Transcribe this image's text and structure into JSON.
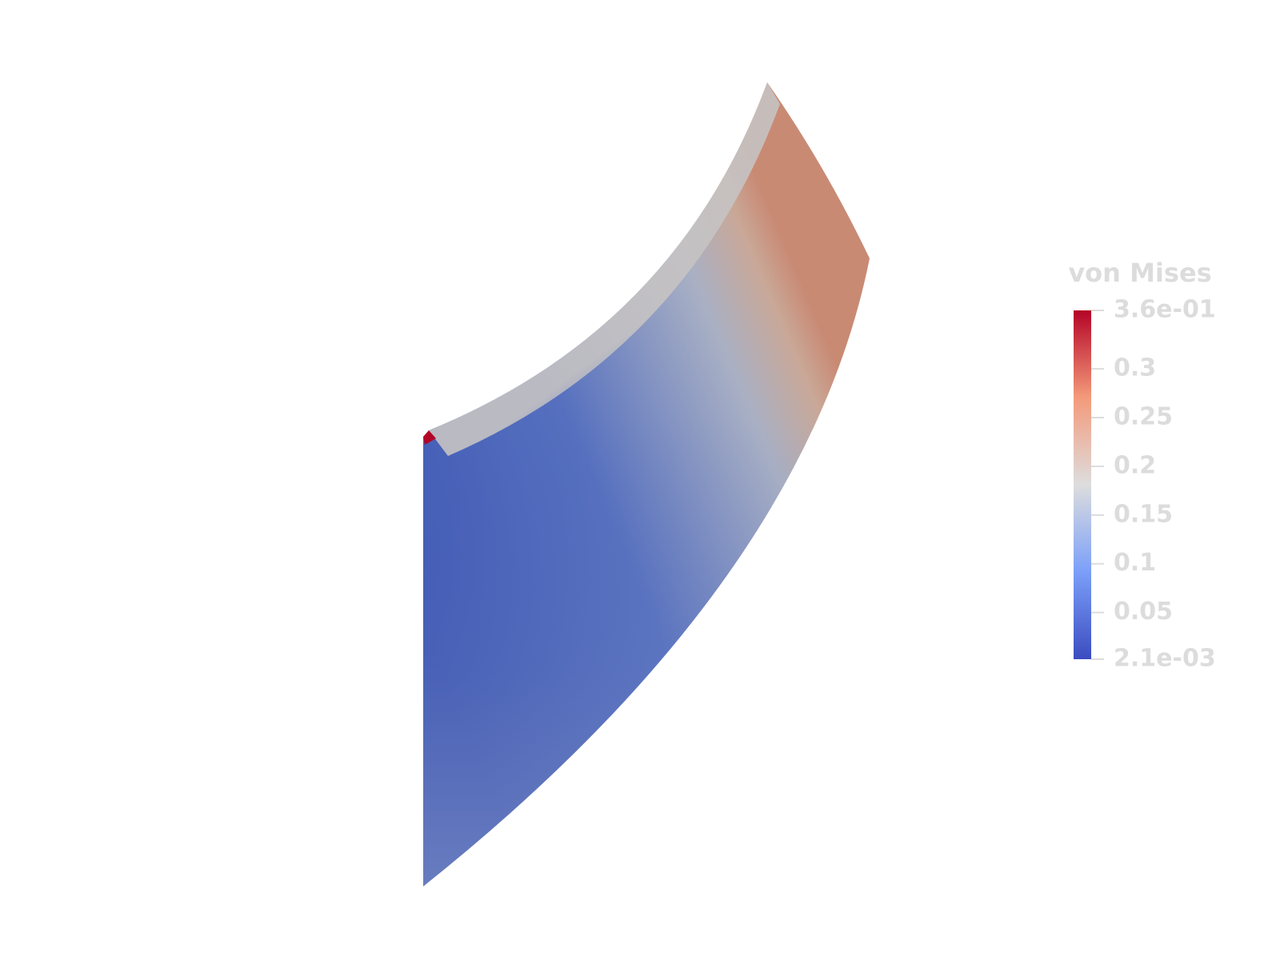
{
  "colorbar": {
    "title": "von Mises",
    "range": [
      0.0021,
      0.36
    ],
    "ticks": [
      {
        "value": 0.36,
        "label": "3.6e-01"
      },
      0.3,
      0.25,
      0.2,
      0.15,
      0.1,
      0.05,
      {
        "value": 0.0021,
        "label": "2.1e-03"
      }
    ]
  }
}
